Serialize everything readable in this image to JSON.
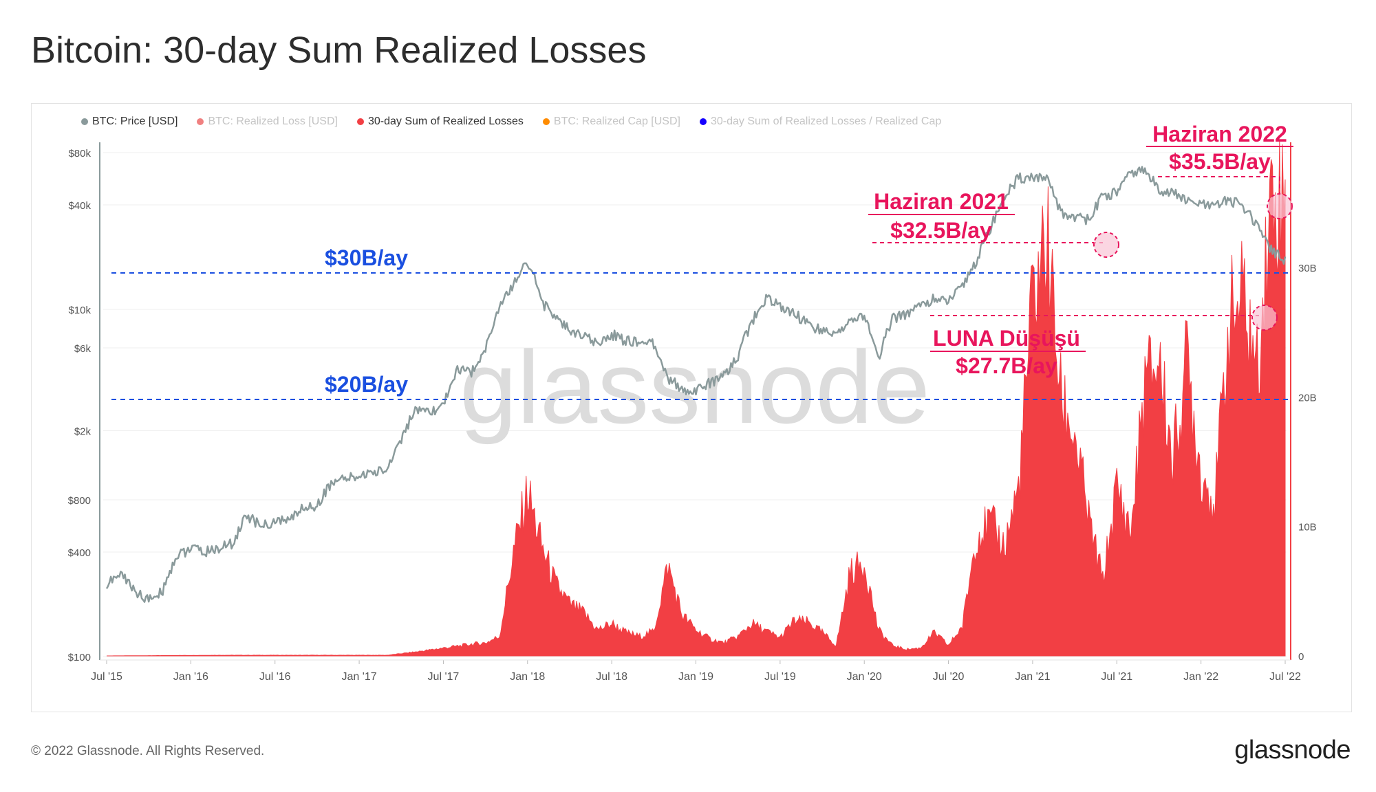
{
  "title": "Bitcoin: 30-day Sum Realized Losses",
  "legend": [
    {
      "label": "BTC: Price [USD]",
      "color": "#8a9a9b",
      "active": true
    },
    {
      "label": "BTC: Realized Loss [USD]",
      "color": "#f08080",
      "active": false
    },
    {
      "label": "30-day Sum of Realized Losses",
      "color": "#f23f44",
      "active": true
    },
    {
      "label": "BTC: Realized Cap [USD]",
      "color": "#ff8c00",
      "active": false
    },
    {
      "label": "30-day Sum of Realized Losses / Realized Cap",
      "color": "#1500ff",
      "active": false
    }
  ],
  "footer": "© 2022 Glassnode. All Rights Reserved.",
  "brand": "glassnode",
  "watermark": "glassnode",
  "annotations": {
    "line30": "$30B/ay",
    "line20": "$20B/ay",
    "h21_title": "Haziran 2021",
    "h21_value": "$32.5B/ay",
    "h22_title": "Haziran 2022",
    "h22_value": "$35.5B/ay",
    "luna_title": "LUNA Düşüşü",
    "luna_value": "$27.7B/ay"
  },
  "chart_data": {
    "type": "line",
    "log_scale_left": true,
    "left_axis_ticks": [
      "$80k",
      "$40k",
      "$10k",
      "$6k",
      "$2k",
      "$800",
      "$400",
      "$100"
    ],
    "right_axis_ticks": [
      "30B",
      "20B",
      "10B",
      "0"
    ],
    "x_ticks": [
      "Jul '15",
      "Jan '16",
      "Jul '16",
      "Jan '17",
      "Jul '17",
      "Jan '18",
      "Jul '18",
      "Jan '19",
      "Jul '19",
      "Jan '20",
      "Jul '20",
      "Jan '21",
      "Jul '21",
      "Jan '22",
      "Jul '22"
    ],
    "grid": true,
    "series": [
      {
        "name": "BTC: Price [USD]",
        "axis": "left",
        "color": "#8a9a9b",
        "points": [
          [
            0,
            260
          ],
          [
            1,
            300
          ],
          [
            2,
            240
          ],
          [
            3,
            210
          ],
          [
            4,
            240
          ],
          [
            5,
            380
          ],
          [
            6,
            420
          ],
          [
            7,
            400
          ],
          [
            8,
            420
          ],
          [
            9,
            450
          ],
          [
            10,
            650
          ],
          [
            11,
            560
          ],
          [
            12,
            600
          ],
          [
            13,
            610
          ],
          [
            14,
            720
          ],
          [
            15,
            740
          ],
          [
            16,
            1000
          ],
          [
            17,
            1050
          ],
          [
            18,
            1100
          ],
          [
            19,
            1150
          ],
          [
            20,
            1200
          ],
          [
            21,
            1800
          ],
          [
            22,
            2600
          ],
          [
            23,
            2500
          ],
          [
            24,
            2800
          ],
          [
            25,
            4500
          ],
          [
            26,
            4300
          ],
          [
            27,
            6000
          ],
          [
            28,
            10000
          ],
          [
            29,
            14000
          ],
          [
            30,
            19000
          ],
          [
            31,
            11000
          ],
          [
            32,
            9000
          ],
          [
            33,
            7500
          ],
          [
            34,
            7000
          ],
          [
            35,
            6300
          ],
          [
            36,
            7200
          ],
          [
            37,
            6600
          ],
          [
            38,
            6500
          ],
          [
            39,
            6300
          ],
          [
            40,
            4000
          ],
          [
            41,
            3500
          ],
          [
            42,
            3400
          ],
          [
            43,
            3800
          ],
          [
            44,
            4100
          ],
          [
            45,
            5300
          ],
          [
            46,
            8500
          ],
          [
            47,
            11500
          ],
          [
            48,
            10500
          ],
          [
            49,
            9500
          ],
          [
            50,
            8200
          ],
          [
            51,
            7500
          ],
          [
            52,
            7200
          ],
          [
            53,
            8500
          ],
          [
            54,
            9300
          ],
          [
            55,
            5000
          ],
          [
            56,
            8800
          ],
          [
            57,
            9500
          ],
          [
            58,
            10500
          ],
          [
            59,
            11500
          ],
          [
            60,
            11000
          ],
          [
            61,
            13500
          ],
          [
            62,
            19000
          ],
          [
            63,
            29000
          ],
          [
            64,
            45000
          ],
          [
            65,
            57000
          ],
          [
            66,
            58000
          ],
          [
            67,
            56000
          ],
          [
            68,
            36000
          ],
          [
            69,
            34000
          ],
          [
            70,
            33000
          ],
          [
            71,
            45000
          ],
          [
            72,
            47000
          ],
          [
            73,
            61000
          ],
          [
            74,
            63000
          ],
          [
            75,
            49000
          ],
          [
            76,
            47000
          ],
          [
            77,
            42000
          ],
          [
            78,
            40000
          ],
          [
            79,
            39000
          ],
          [
            80,
            43000
          ],
          [
            81,
            39000
          ],
          [
            82,
            30000
          ],
          [
            83,
            22000
          ],
          [
            84,
            19000
          ]
        ]
      },
      {
        "name": "30-day Sum of Realized Losses",
        "axis": "right",
        "color": "#f23f44",
        "points": [
          [
            0,
            0
          ],
          [
            8,
            0.05
          ],
          [
            16,
            0.05
          ],
          [
            20,
            0.05
          ],
          [
            22,
            0.3
          ],
          [
            24,
            0.6
          ],
          [
            26,
            0.9
          ],
          [
            27,
            1.0
          ],
          [
            28,
            1.5
          ],
          [
            29,
            8.0
          ],
          [
            30,
            12.7
          ],
          [
            31,
            8.5
          ],
          [
            32,
            5.5
          ],
          [
            33,
            4.0
          ],
          [
            34,
            3.3
          ],
          [
            35,
            2.0
          ],
          [
            36,
            2.5
          ],
          [
            37,
            1.8
          ],
          [
            38,
            1.5
          ],
          [
            39,
            1.9
          ],
          [
            40,
            7.0
          ],
          [
            41,
            3.2
          ],
          [
            42,
            2.0
          ],
          [
            43,
            1.3
          ],
          [
            44,
            1.0
          ],
          [
            45,
            1.5
          ],
          [
            46,
            2.5
          ],
          [
            47,
            1.9
          ],
          [
            48,
            1.4
          ],
          [
            49,
            2.7
          ],
          [
            50,
            2.6
          ],
          [
            51,
            1.8
          ],
          [
            52,
            0.8
          ],
          [
            53,
            6.5
          ],
          [
            54,
            7.2
          ],
          [
            55,
            2.0
          ],
          [
            56,
            0.8
          ],
          [
            57,
            0.5
          ],
          [
            58,
            0.6
          ],
          [
            59,
            1.8
          ],
          [
            60,
            0.8
          ],
          [
            61,
            2.3
          ],
          [
            62,
            9.5
          ],
          [
            63,
            10.2
          ],
          [
            64,
            8.5
          ],
          [
            65,
            13.0
          ],
          [
            66,
            27.5
          ],
          [
            67,
            32.5
          ],
          [
            68,
            20.0
          ],
          [
            69,
            17.0
          ],
          [
            70,
            10.5
          ],
          [
            71,
            5.8
          ],
          [
            72,
            13.0
          ],
          [
            73,
            9.5
          ],
          [
            74,
            21.0
          ],
          [
            75,
            23.0
          ],
          [
            76,
            15.0
          ],
          [
            77,
            23.0
          ],
          [
            78,
            14.0
          ],
          [
            79,
            12.0
          ],
          [
            80,
            26.0
          ],
          [
            81,
            27.7
          ],
          [
            82,
            22.0
          ],
          [
            83,
            35.5
          ],
          [
            84,
            35.0
          ]
        ]
      }
    ]
  }
}
